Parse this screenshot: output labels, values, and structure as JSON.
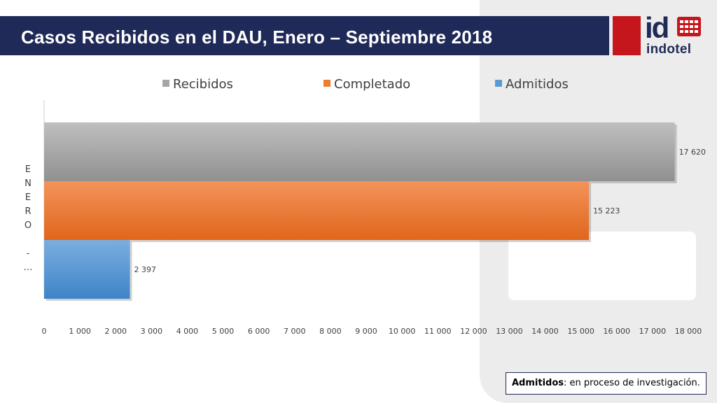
{
  "slide": {
    "title": "Casos Recibidos en el DAU, Enero – Septiembre 2018",
    "logo": {
      "mark": "id",
      "word": "indotel",
      "accent_color": "#c4161c",
      "brand_color": "#1f2a58"
    },
    "note": {
      "term": "Admitidos",
      "text": ": en proceso de investigación."
    }
  },
  "chart_data": {
    "type": "bar",
    "orientation": "horizontal",
    "categories": [
      "ENERO - …"
    ],
    "category_label_chars": [
      "E",
      "N",
      "E",
      "R",
      "O",
      "",
      "-",
      "…"
    ],
    "series": [
      {
        "name": "Recibidos",
        "values": [
          17620
        ],
        "value_label": "17 620",
        "color": "#a6a6a6"
      },
      {
        "name": "Completado",
        "values": [
          15223
        ],
        "value_label": "15 223",
        "color": "#ed7d31"
      },
      {
        "name": "Admitidos",
        "values": [
          2397
        ],
        "value_label": "2 397",
        "color": "#5b9bd5"
      }
    ],
    "xlim": [
      0,
      18000
    ],
    "xticks": [
      0,
      1000,
      2000,
      3000,
      4000,
      5000,
      6000,
      7000,
      8000,
      9000,
      10000,
      11000,
      12000,
      13000,
      14000,
      15000,
      16000,
      17000,
      18000
    ],
    "xtick_labels": [
      "0",
      "1 000",
      "2 000",
      "3 000",
      "4 000",
      "5 000",
      "6 000",
      "7 000",
      "8 000",
      "9 000",
      "10 000",
      "11 000",
      "12 000",
      "13 000",
      "14 000",
      "15 000",
      "16 000",
      "17 000",
      "18 000"
    ],
    "legend_position": "top",
    "grid": false
  }
}
